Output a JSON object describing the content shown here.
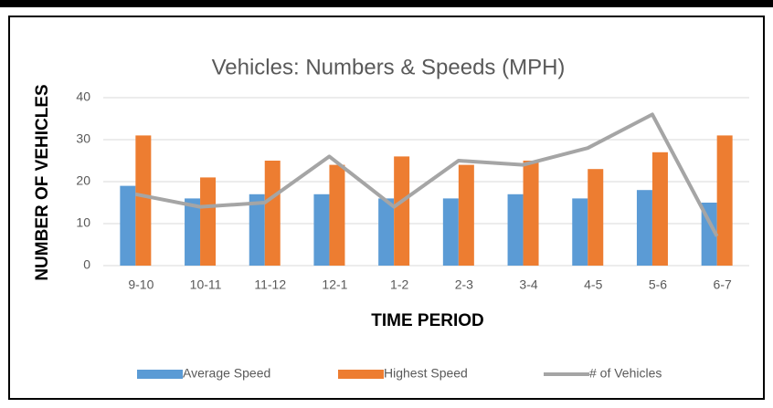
{
  "chart_data": {
    "type": "bar",
    "title": "Vehicles: Numbers & Speeds (MPH)",
    "x_label": "TIME PERIOD",
    "y_label": "NUMBER OF VEHICLES",
    "categories": [
      "9-10",
      "10-11",
      "11-12",
      "12-1",
      "1-2",
      "2-3",
      "3-4",
      "4-5",
      "5-6",
      "6-7"
    ],
    "series": [
      {
        "name": "Average Speed",
        "type": "bar",
        "color": "#5b9bd5",
        "values": [
          19,
          16,
          17,
          17,
          16,
          16,
          17,
          16,
          18,
          15
        ]
      },
      {
        "name": "Highest Speed",
        "type": "bar",
        "color": "#ed7d31",
        "values": [
          31,
          21,
          25,
          24,
          26,
          24,
          25,
          23,
          27,
          31
        ]
      },
      {
        "name": "# of Vehicles",
        "type": "line",
        "color": "#a5a5a5",
        "values": [
          17,
          14,
          15,
          26,
          14,
          25,
          24,
          28,
          36,
          7
        ]
      }
    ],
    "ylim": [
      0,
      40
    ],
    "yticks": [
      0,
      10,
      20,
      30,
      40
    ],
    "grid": true,
    "legend": "bottom"
  }
}
